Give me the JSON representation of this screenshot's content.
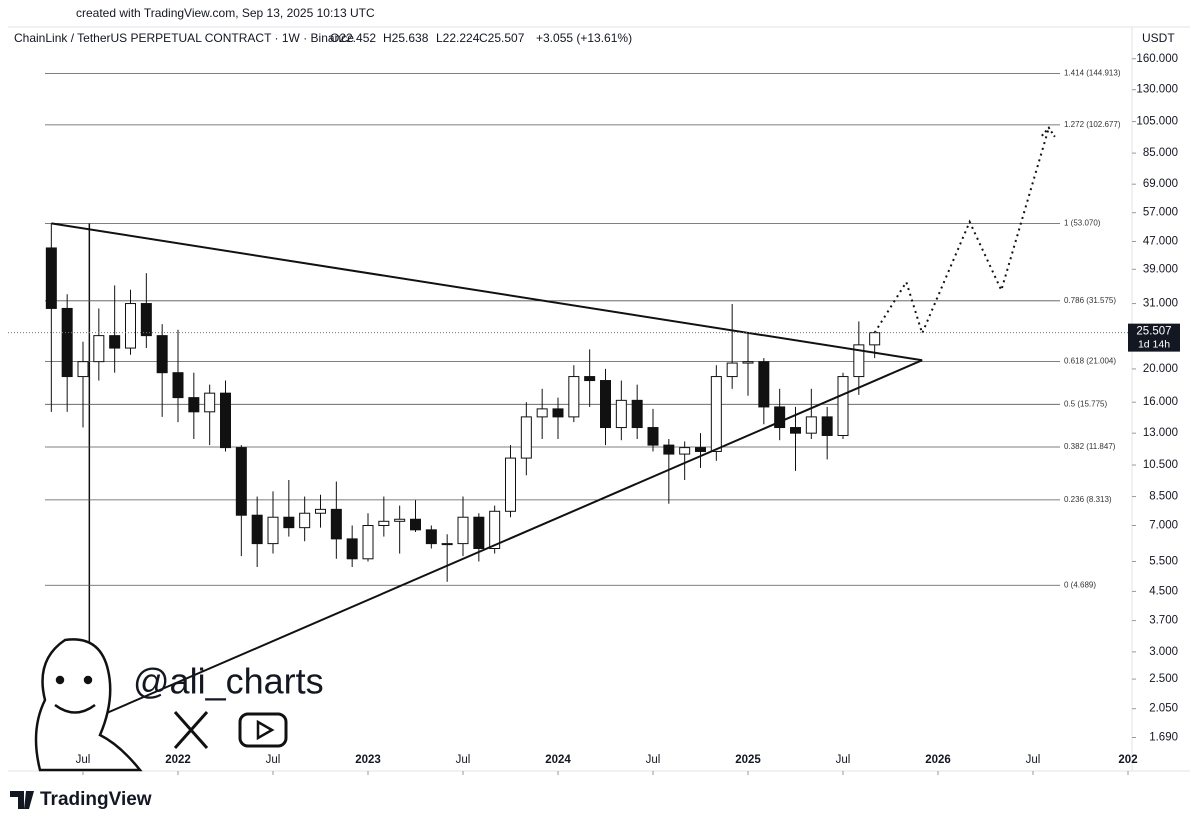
{
  "header": {
    "created": "created with TradingView.com, Sep 13, 2025 10:13 UTC",
    "symbol": "ChainLink / TetherUS PERPETUAL CONTRACT · 1W · Binance",
    "open": "O22.452",
    "high": "H25.638",
    "low": "L22.224",
    "close": "C25.507",
    "change": "+3.055 (+13.61%)",
    "currency": "USDT"
  },
  "chart_data": {
    "type": "candlestick",
    "log_scale": true,
    "x": [
      "2021-05",
      "2021-06",
      "2021-07",
      "2021-08",
      "2021-09",
      "2021-10",
      "2021-11",
      "2021-12",
      "2022-01",
      "2022-02",
      "2022-03",
      "2022-04",
      "2022-05",
      "2022-06",
      "2022-07",
      "2022-08",
      "2022-09",
      "2022-10",
      "2022-11",
      "2022-12",
      "2023-01",
      "2023-02",
      "2023-03",
      "2023-04",
      "2023-05",
      "2023-06",
      "2023-07",
      "2023-08",
      "2023-09",
      "2023-10",
      "2023-11",
      "2023-12",
      "2024-01",
      "2024-02",
      "2024-03",
      "2024-04",
      "2024-05",
      "2024-06",
      "2024-07",
      "2024-08",
      "2024-09",
      "2024-10",
      "2024-11",
      "2024-12",
      "2025-01",
      "2025-02",
      "2025-03",
      "2025-04",
      "2025-05",
      "2025-06",
      "2025-07",
      "2025-08",
      "2025-09"
    ],
    "open": [
      45,
      30,
      19,
      21,
      25,
      23,
      31,
      25,
      19.5,
      16.5,
      15,
      17,
      11.8,
      7.5,
      6.2,
      7.4,
      6.9,
      7.6,
      7.8,
      6.4,
      5.6,
      7,
      7.2,
      7.3,
      6.8,
      6.2,
      6.2,
      7.4,
      6,
      7.7,
      11,
      14.5,
      15.3,
      14.5,
      19,
      18.5,
      13.5,
      16.2,
      13.5,
      12,
      11.3,
      11.8,
      11.5,
      19,
      20.8,
      21,
      15.5,
      13.5,
      13,
      14.5,
      12.8,
      19,
      23.5
    ],
    "high": [
      53,
      33,
      24,
      30,
      35,
      34,
      38,
      27,
      26,
      19.5,
      18,
      18.5,
      12,
      8.5,
      8.8,
      9.5,
      8.5,
      8.6,
      9.4,
      7,
      7.6,
      8.5,
      8,
      8.3,
      7,
      6.6,
      8.5,
      7.6,
      8,
      12,
      16,
      17.5,
      16.5,
      20.5,
      22.8,
      20,
      18.5,
      18,
      15.3,
      12.5,
      12.3,
      13,
      20.5,
      30.9,
      25.5,
      21.5,
      17.5,
      15.5,
      17.5,
      15.5,
      19.5,
      27.5,
      25.6
    ],
    "low": [
      15,
      15,
      13.5,
      18.5,
      19.5,
      22,
      23,
      14.5,
      14,
      12.5,
      12,
      11.5,
      5.7,
      5.3,
      5.8,
      6.5,
      6.3,
      6.9,
      5.6,
      5.3,
      5.5,
      6.5,
      5.8,
      6.7,
      6,
      4.8,
      5.7,
      5.5,
      5.8,
      7.4,
      9.8,
      12.5,
      12.5,
      14,
      15.5,
      12,
      12.4,
      12.5,
      11.5,
      8.1,
      9.5,
      10.3,
      10.8,
      17.5,
      16.7,
      13.8,
      12.4,
      10.1,
      12.5,
      10.9,
      12.5,
      16.8,
      21.5
    ],
    "close": [
      30,
      19,
      21,
      25,
      23,
      31,
      25,
      19.5,
      16.5,
      15,
      17,
      11.8,
      7.5,
      6.2,
      7.4,
      6.9,
      7.6,
      7.8,
      6.4,
      5.6,
      7,
      7.2,
      7.3,
      6.8,
      6.2,
      6.2,
      7.4,
      6,
      7.7,
      11,
      14.5,
      15.3,
      14.5,
      19,
      18.5,
      13.5,
      16.2,
      13.5,
      12,
      11.3,
      11.8,
      11.5,
      19,
      20.8,
      21,
      15.5,
      13.5,
      13,
      14.5,
      12.8,
      19,
      23.5,
      25.5
    ],
    "last_price": 25.507,
    "countdown": "1d 14h",
    "ylim": [
      1.35,
      194
    ],
    "yticks": [
      {
        "value": 160,
        "label": "160.000"
      },
      {
        "value": 130,
        "label": "130.000"
      },
      {
        "value": 105,
        "label": "105.000"
      },
      {
        "value": 85,
        "label": "85.000"
      },
      {
        "value": 69,
        "label": "69.000"
      },
      {
        "value": 57,
        "label": "57.000"
      },
      {
        "value": 47,
        "label": "47.000"
      },
      {
        "value": 39,
        "label": "39.000"
      },
      {
        "value": 31,
        "label": "31.000"
      },
      {
        "value": 20,
        "label": "20.000"
      },
      {
        "value": 16,
        "label": "16.000"
      },
      {
        "value": 13,
        "label": "13.000"
      },
      {
        "value": 10.5,
        "label": "10.500"
      },
      {
        "value": 8.5,
        "label": "8.500"
      },
      {
        "value": 7,
        "label": "7.000"
      },
      {
        "value": 5.5,
        "label": "5.500"
      },
      {
        "value": 4.5,
        "label": "4.500"
      },
      {
        "value": 3.7,
        "label": "3.700"
      },
      {
        "value": 3,
        "label": "3.000"
      },
      {
        "value": 2.5,
        "label": "2.500"
      },
      {
        "value": 2.05,
        "label": "2.050"
      },
      {
        "value": 1.69,
        "label": "1.690"
      }
    ],
    "xticks": [
      {
        "value": "2021-07",
        "label": "Jul"
      },
      {
        "value": "2022-01",
        "label": "2022"
      },
      {
        "value": "2022-07",
        "label": "Jul"
      },
      {
        "value": "2023-01",
        "label": "2023"
      },
      {
        "value": "2023-07",
        "label": "Jul"
      },
      {
        "value": "2024-01",
        "label": "2024"
      },
      {
        "value": "2024-07",
        "label": "Jul"
      },
      {
        "value": "2025-01",
        "label": "2025"
      },
      {
        "value": "2025-07",
        "label": "Jul"
      },
      {
        "value": "2026-01",
        "label": "2026"
      },
      {
        "value": "2026-07",
        "label": "Jul"
      },
      {
        "value": "2027-01",
        "label": "202"
      }
    ],
    "fib_levels": [
      {
        "label": "1.414 (144.913)",
        "value": 144.913
      },
      {
        "label": "1.272 (102.677)",
        "value": 102.677
      },
      {
        "label": "1 (53.070)",
        "value": 53.07
      },
      {
        "label": "0.786 (31.575)",
        "value": 31.575
      },
      {
        "label": "0.618 (21.004)",
        "value": 21.004
      },
      {
        "label": "0.5 (15.775)",
        "value": 15.775
      },
      {
        "label": "0.382 (11.847)",
        "value": 11.847
      },
      {
        "label": "0.236 (8.313)",
        "value": 8.313
      },
      {
        "label": "0 (4.689)",
        "value": 4.689
      }
    ],
    "trendlines": [
      {
        "x": [
          "2021-05",
          "2025-12"
        ],
        "y": [
          53.07,
          21.2
        ]
      },
      {
        "x": [
          "2021-04",
          "2025-12"
        ],
        "y": [
          1.62,
          21.2
        ]
      }
    ],
    "projection": {
      "x": [
        "2025-09",
        "2025-11",
        "2025-12",
        "2026-03",
        "2026-05",
        "2026-08"
      ],
      "y": [
        25.5,
        35.8,
        25.4,
        53.6,
        33.9,
        100.7
      ]
    },
    "watermark": "@ali_charts",
    "brand": "TradingView"
  }
}
